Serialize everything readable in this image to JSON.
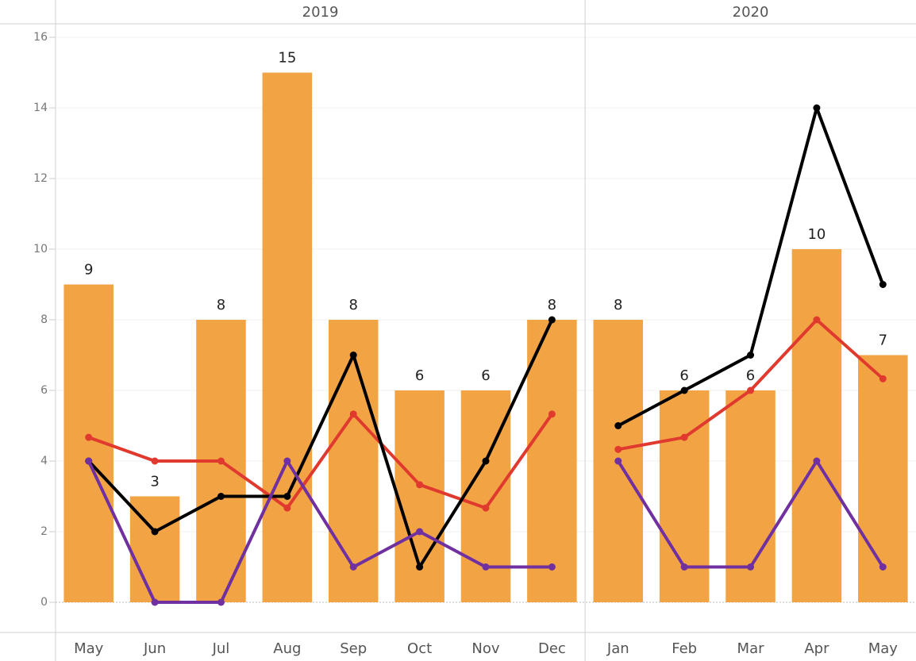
{
  "chart_data": {
    "type": "bar",
    "ylim": [
      0,
      16
    ],
    "yticks": [
      0,
      2,
      4,
      6,
      8,
      10,
      12,
      14,
      16
    ],
    "grid": true,
    "color": "#f2a445",
    "groups": [
      {
        "title": "2019",
        "categories": [
          "May",
          "Jun",
          "Jul",
          "Aug",
          "Sep",
          "Oct",
          "Nov",
          "Dec"
        ],
        "values": [
          9,
          3,
          8,
          15,
          8,
          6,
          6,
          8
        ],
        "series": [
          {
            "color": "#e03a2f",
            "values": [
              4.67,
              4,
              4,
              2.67,
              5.33,
              3.33,
              2.67,
              5.33
            ]
          },
          {
            "color": "#000000",
            "values": [
              4,
              2,
              3,
              3,
              7,
              1,
              4,
              8
            ]
          },
          {
            "color": "#7030a0",
            "values": [
              4,
              0,
              0,
              4,
              1,
              2,
              1,
              1
            ]
          }
        ]
      },
      {
        "title": "2020",
        "categories": [
          "Jan",
          "Feb",
          "Mar",
          "Apr",
          "May"
        ],
        "values": [
          8,
          6,
          6,
          10,
          7
        ],
        "series": [
          {
            "color": "#e03a2f",
            "values": [
              4.33,
              4.67,
              6,
              8,
              6.33
            ]
          },
          {
            "color": "#000000",
            "values": [
              5,
              6,
              7,
              14,
              9
            ]
          },
          {
            "color": "#7030a0",
            "values": [
              4,
              1,
              1,
              4,
              1
            ]
          }
        ]
      }
    ]
  }
}
